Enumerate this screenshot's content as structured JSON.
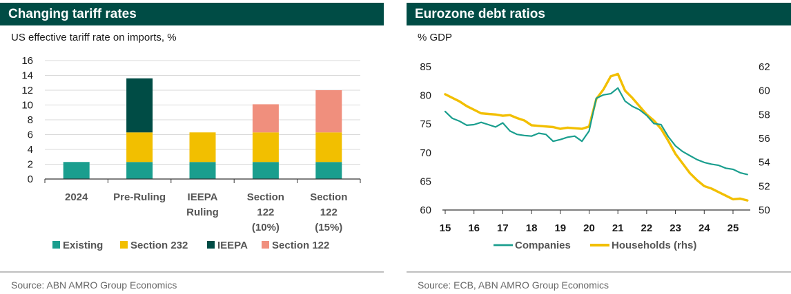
{
  "colors": {
    "header_bg": "#004c45",
    "existing": "#1a9e8e",
    "section232": "#f2bf00",
    "ieepa": "#004c45",
    "section122": "#f08f7d",
    "companies": "#1a9e8e",
    "households": "#f2bf00"
  },
  "chart_data": [
    {
      "type": "bar",
      "stacked": true,
      "title": "Changing tariff rates",
      "subtitle": "US effective tariff rate on imports, %",
      "source": "Source: ABN AMRO Group Economics",
      "categories": [
        [
          "2024"
        ],
        [
          "Pre-Ruling"
        ],
        [
          "IEEPA",
          "Ruling"
        ],
        [
          "Section",
          "122",
          "(10%)"
        ],
        [
          "Section",
          "122",
          "(15%)"
        ]
      ],
      "series": [
        {
          "name": "Existing",
          "values": [
            2.3,
            2.3,
            2.3,
            2.3,
            2.3
          ]
        },
        {
          "name": "Section 232",
          "values": [
            0,
            4.0,
            4.0,
            4.0,
            4.0
          ]
        },
        {
          "name": "IEEPA",
          "values": [
            0,
            7.3,
            0,
            0,
            0
          ]
        },
        {
          "name": "Section 122",
          "values": [
            0,
            0,
            0,
            3.8,
            5.7
          ]
        }
      ],
      "yticks": [
        "0",
        "2",
        "4",
        "6",
        "8",
        "10",
        "12",
        "14",
        "16"
      ],
      "ylim": [
        0,
        16
      ],
      "grid": true,
      "legend_position": "bottom"
    },
    {
      "type": "line",
      "title": "Eurozone debt ratios",
      "subtitle": "% GDP",
      "source": "Source: ECB, ABN AMRO Group Economics",
      "xticks": [
        "15",
        "16",
        "17",
        "18",
        "19",
        "20",
        "21",
        "22",
        "23",
        "24",
        "25"
      ],
      "xlim": [
        2015,
        2025.6
      ],
      "ylim_left": [
        60,
        85
      ],
      "ylim_right": [
        50,
        62
      ],
      "yticks_left": [
        "60",
        "65",
        "70",
        "75",
        "80",
        "85"
      ],
      "yticks_right": [
        "50",
        "52",
        "54",
        "56",
        "58",
        "60",
        "62"
      ],
      "grid": false,
      "legend_position": "bottom",
      "series": [
        {
          "name": "Companies",
          "axis": "left",
          "points": [
            [
              2015.0,
              77.2
            ],
            [
              2015.25,
              76.0
            ],
            [
              2015.5,
              75.5
            ],
            [
              2015.75,
              74.8
            ],
            [
              2016.0,
              74.9
            ],
            [
              2016.25,
              75.3
            ],
            [
              2016.5,
              74.9
            ],
            [
              2016.75,
              74.5
            ],
            [
              2017.0,
              75.2
            ],
            [
              2017.25,
              73.8
            ],
            [
              2017.5,
              73.2
            ],
            [
              2017.75,
              73.0
            ],
            [
              2018.0,
              72.9
            ],
            [
              2018.25,
              73.4
            ],
            [
              2018.5,
              73.2
            ],
            [
              2018.75,
              72.0
            ],
            [
              2019.0,
              72.3
            ],
            [
              2019.25,
              72.7
            ],
            [
              2019.5,
              72.9
            ],
            [
              2019.75,
              72.0
            ],
            [
              2020.0,
              73.8
            ],
            [
              2020.25,
              79.5
            ],
            [
              2020.5,
              80.1
            ],
            [
              2020.75,
              80.3
            ],
            [
              2021.0,
              81.3
            ],
            [
              2021.25,
              79.0
            ],
            [
              2021.5,
              78.1
            ],
            [
              2021.75,
              77.5
            ],
            [
              2022.0,
              76.5
            ],
            [
              2022.25,
              75.1
            ],
            [
              2022.5,
              74.9
            ],
            [
              2022.75,
              72.8
            ],
            [
              2023.0,
              71.2
            ],
            [
              2023.25,
              70.2
            ],
            [
              2023.5,
              69.5
            ],
            [
              2023.75,
              68.8
            ],
            [
              2024.0,
              68.3
            ],
            [
              2024.25,
              68.0
            ],
            [
              2024.5,
              67.8
            ],
            [
              2024.75,
              67.3
            ],
            [
              2025.0,
              67.1
            ],
            [
              2025.25,
              66.5
            ],
            [
              2025.5,
              66.2
            ]
          ]
        },
        {
          "name": "Households (rhs)",
          "axis": "right",
          "points": [
            [
              2015.0,
              59.7
            ],
            [
              2015.25,
              59.4
            ],
            [
              2015.5,
              59.1
            ],
            [
              2015.75,
              58.7
            ],
            [
              2016.0,
              58.4
            ],
            [
              2016.25,
              58.1
            ],
            [
              2016.5,
              58.05
            ],
            [
              2016.75,
              58.0
            ],
            [
              2017.0,
              57.9
            ],
            [
              2017.25,
              57.95
            ],
            [
              2017.5,
              57.7
            ],
            [
              2017.75,
              57.5
            ],
            [
              2018.0,
              57.1
            ],
            [
              2018.25,
              57.05
            ],
            [
              2018.5,
              57.0
            ],
            [
              2018.75,
              56.95
            ],
            [
              2019.0,
              56.8
            ],
            [
              2019.25,
              56.9
            ],
            [
              2019.5,
              56.85
            ],
            [
              2019.75,
              56.8
            ],
            [
              2020.0,
              57.0
            ],
            [
              2020.25,
              59.3
            ],
            [
              2020.5,
              60.1
            ],
            [
              2020.75,
              61.2
            ],
            [
              2021.0,
              61.4
            ],
            [
              2021.25,
              60.0
            ],
            [
              2021.5,
              59.4
            ],
            [
              2021.75,
              58.7
            ],
            [
              2022.0,
              58.0
            ],
            [
              2022.25,
              57.5
            ],
            [
              2022.5,
              56.8
            ],
            [
              2022.75,
              55.8
            ],
            [
              2023.0,
              54.7
            ],
            [
              2023.25,
              53.9
            ],
            [
              2023.5,
              53.1
            ],
            [
              2023.75,
              52.5
            ],
            [
              2024.0,
              52.0
            ],
            [
              2024.25,
              51.8
            ],
            [
              2024.5,
              51.5
            ],
            [
              2024.75,
              51.2
            ],
            [
              2025.0,
              50.9
            ],
            [
              2025.25,
              50.95
            ],
            [
              2025.5,
              50.8
            ]
          ]
        }
      ]
    }
  ]
}
